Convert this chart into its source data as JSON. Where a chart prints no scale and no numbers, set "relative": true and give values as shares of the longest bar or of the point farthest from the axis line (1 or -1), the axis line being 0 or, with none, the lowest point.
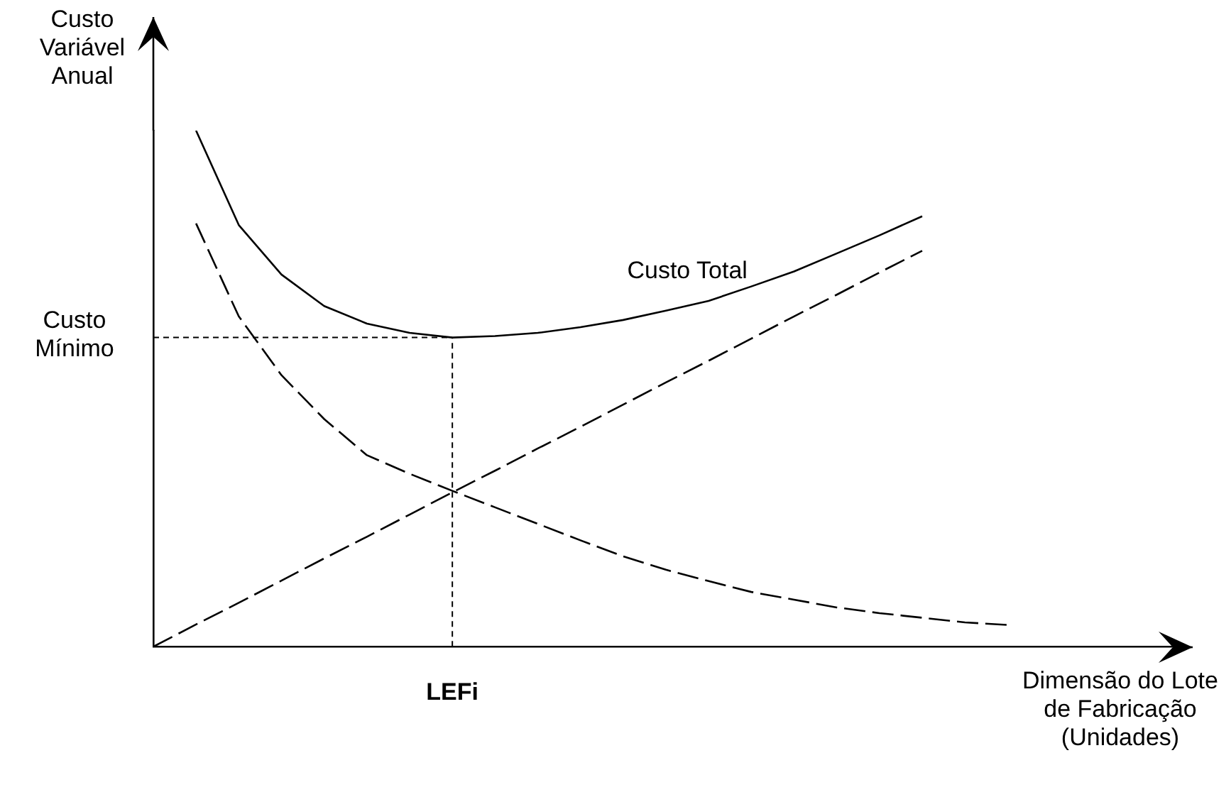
{
  "chart_data": {
    "type": "line",
    "relative": true,
    "xlabel": "Dimensão do Lote de Fabricação (Unidades)",
    "ylabel": "Custo Variável Anual",
    "tick_labels": "x",
    "legend": false,
    "grid": false,
    "marker": "none",
    "categories": [
      null,
      null,
      null,
      null,
      null,
      null,
      null,
      null,
      null,
      null,
      null,
      null,
      null,
      null,
      null,
      null,
      null,
      null,
      null,
      null,
      null,
      null,
      null,
      null,
      null
    ],
    "series": [
      {
        "name": "Custo Total",
        "color": "#000000",
        "line_style": "solid",
        "values": [
          null,
          1,
          0.817,
          0.721,
          0.66,
          0.626,
          0.608,
          0.599,
          0.602,
          0.608,
          0.619,
          0.633,
          0.651,
          0.67,
          0.698,
          0.727,
          0.762,
          0.797,
          0.834,
          null,
          null,
          null,
          null,
          null,
          null
        ]
      },
      {
        "color": "#000000",
        "line_style": "dashed",
        "values": [
          null,
          0.82,
          0.64,
          0.526,
          0.441,
          0.371,
          0.335,
          0.302,
          0.27,
          0.238,
          0.206,
          0.175,
          0.149,
          0.127,
          0.106,
          0.091,
          0.076,
          0.065,
          0.056,
          0.047,
          0.042,
          null,
          null,
          null,
          null
        ]
      },
      {
        "color": "#000000",
        "line_style": "dashed",
        "values": [
          0,
          0.043,
          0.085,
          0.128,
          0.171,
          0.213,
          0.256,
          0.299,
          0.341,
          0.384,
          0.426,
          0.469,
          0.512,
          0.554,
          0.597,
          0.64,
          0.682,
          0.725,
          0.767,
          null,
          null,
          null,
          null,
          null,
          null
        ]
      }
    ],
    "ref_lines": [
      {
        "axis": "x",
        "label": "LEFi"
      },
      {
        "axis": "y",
        "value": 0.599,
        "label": "Custo Mínimo"
      }
    ]
  }
}
